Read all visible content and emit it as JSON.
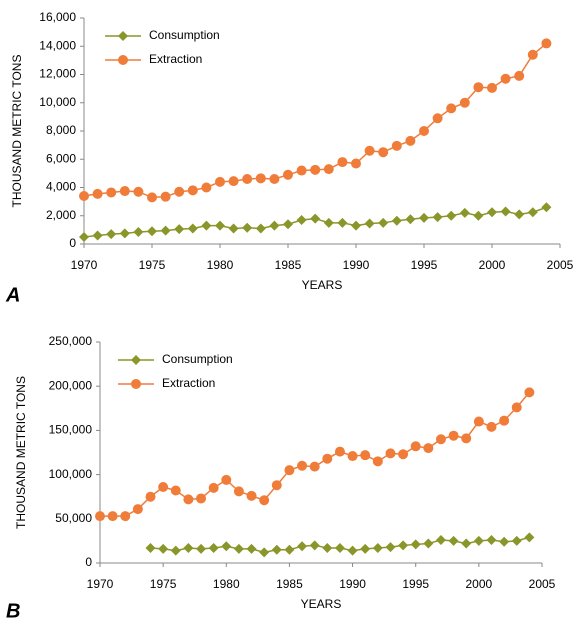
{
  "chart_data": [
    {
      "type": "line",
      "panel_label": "A",
      "y_label": "THOUSAND METRIC TONS",
      "x_label": "YEARS",
      "x": [
        1970,
        1971,
        1972,
        1973,
        1974,
        1975,
        1976,
        1977,
        1978,
        1979,
        1980,
        1981,
        1982,
        1983,
        1984,
        1985,
        1986,
        1987,
        1988,
        1989,
        1990,
        1991,
        1992,
        1993,
        1994,
        1995,
        1996,
        1997,
        1998,
        1999,
        2000,
        2001,
        2002,
        2003,
        2004
      ],
      "series": [
        {
          "name": "Consumption",
          "color": "#8a962a",
          "marker": "diamond",
          "values": [
            500,
            600,
            700,
            750,
            850,
            900,
            950,
            1050,
            1100,
            1300,
            1300,
            1100,
            1150,
            1100,
            1300,
            1400,
            1700,
            1800,
            1500,
            1500,
            1300,
            1450,
            1500,
            1650,
            1750,
            1850,
            1900,
            2000,
            2200,
            2000,
            2250,
            2300,
            2100,
            2250,
            2600
          ]
        },
        {
          "name": "Extraction",
          "color": "#f07c3a",
          "marker": "circle",
          "values": [
            3400,
            3550,
            3650,
            3750,
            3700,
            3300,
            3350,
            3700,
            3800,
            4000,
            4400,
            4450,
            4600,
            4650,
            4600,
            4900,
            5200,
            5250,
            5300,
            5800,
            5700,
            6600,
            6500,
            6950,
            7300,
            8000,
            8900,
            9600,
            10000,
            11100,
            11050,
            11700,
            11900,
            13400,
            14200
          ]
        }
      ],
      "xlim": [
        1970,
        2005
      ],
      "xticks": [
        1970,
        1975,
        1980,
        1985,
        1990,
        1995,
        2000,
        2005
      ],
      "ylim": [
        0,
        16000
      ],
      "yticks": [
        0,
        {
          "value": 2000,
          "label": "2,000"
        },
        {
          "value": 4000,
          "label": "4,000"
        },
        {
          "value": 6000,
          "label": "6,000"
        },
        {
          "value": 8000,
          "label": "8,000"
        },
        {
          "value": 10000,
          "label": "10,000"
        },
        {
          "value": 12000,
          "label": "12,000"
        },
        {
          "value": 14000,
          "label": "14,000"
        },
        {
          "value": 16000,
          "label": "16,000"
        }
      ],
      "legend": "upper left"
    },
    {
      "type": "line",
      "panel_label": "B",
      "y_label": "THOUSAND METRIC TONS",
      "x_label": "YEARS",
      "x": [
        1970,
        1971,
        1972,
        1973,
        1974,
        1975,
        1976,
        1977,
        1978,
        1979,
        1980,
        1981,
        1982,
        1983,
        1984,
        1985,
        1986,
        1987,
        1988,
        1989,
        1990,
        1991,
        1992,
        1993,
        1994,
        1995,
        1996,
        1997,
        1998,
        1999,
        2000,
        2001,
        2002,
        2003,
        2004
      ],
      "series": [
        {
          "name": "Consumption",
          "color": "#8a962a",
          "marker": "diamond",
          "values": [
            null,
            null,
            null,
            null,
            17000,
            16000,
            14000,
            17000,
            16000,
            17000,
            19000,
            16000,
            16000,
            12000,
            15000,
            15000,
            19000,
            20000,
            17000,
            17000,
            14000,
            16000,
            17000,
            18000,
            20000,
            21000,
            22000,
            26000,
            25000,
            22000,
            25000,
            26000,
            24000,
            25000,
            29000
          ]
        },
        {
          "name": "Extraction",
          "color": "#f07c3a",
          "marker": "circle",
          "values": [
            53000,
            53000,
            53000,
            61000,
            75000,
            86000,
            82000,
            72000,
            73000,
            85000,
            94000,
            81000,
            76000,
            71000,
            88000,
            105000,
            110000,
            109000,
            118000,
            126000,
            121000,
            122000,
            115000,
            124000,
            123000,
            132000,
            130000,
            140000,
            144000,
            141000,
            160000,
            154000,
            161000,
            176000,
            193000
          ]
        }
      ],
      "xlim": [
        1970,
        2005
      ],
      "xticks": [
        1970,
        1975,
        1980,
        1985,
        1990,
        1995,
        2000,
        2005
      ],
      "ylim": [
        0,
        250000
      ],
      "yticks": [
        0,
        {
          "value": 50000,
          "label": "50,000"
        },
        {
          "value": 100000,
          "label": "100,000"
        },
        {
          "value": 150000,
          "label": "150,000"
        },
        {
          "value": 200000,
          "label": "200,000"
        },
        {
          "value": 250000,
          "label": "250,000"
        }
      ],
      "legend": "upper left"
    }
  ]
}
